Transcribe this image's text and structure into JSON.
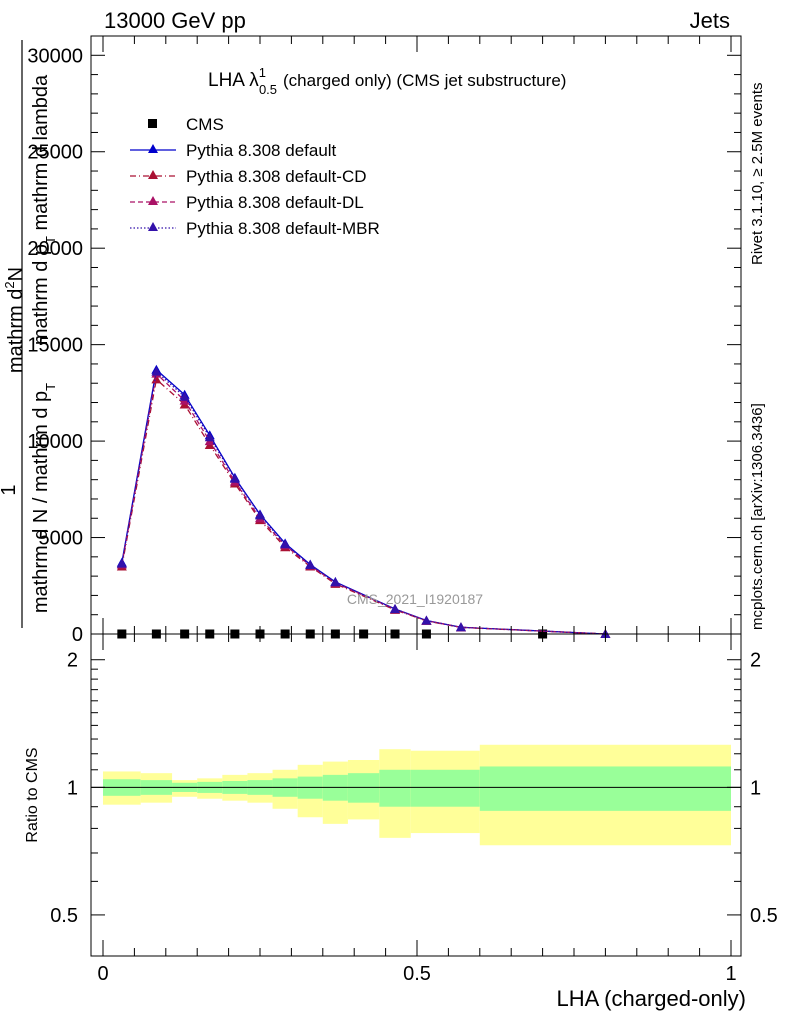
{
  "header": {
    "left_label": "13000 GeV pp",
    "right_label": "Jets"
  },
  "main_plot": {
    "title_main": "LHA λ",
    "title_sup": "1",
    "title_sub": "0.5",
    "title_rest": "(charged only) (CMS jet substructure)",
    "ylabel_num": "1",
    "ylabel_den": "mathrm d N / mathrm d p",
    "ylabel_den_sub": "T",
    "ylabel_frac2_num": "mathrm d",
    "ylabel_frac2_num_sup": "2",
    "ylabel_frac2_num_end": "N",
    "ylabel_frac2_den": "mathrm d p",
    "ylabel_frac2_den_sub": "T",
    "ylabel_frac2_den_end": " mathrm d lambda",
    "watermark": "CMS_2021_I1920187"
  },
  "ratio_plot": {
    "ylabel": "Ratio to CMS"
  },
  "xlabel": "LHA (charged-only)",
  "side": {
    "rivet": "Rivet 3.1.10, ≥ 2.5M events",
    "mcplots": "mcplots.cern.ch [arXiv:1306.3436]"
  },
  "chart_data": {
    "type": "line",
    "xlim": [
      0,
      1
    ],
    "ylim": [
      0,
      31000
    ],
    "ratio_ylim": [
      0.4,
      2.3
    ],
    "x_ticks": [
      "0",
      "0.5",
      "1"
    ],
    "y_ticks": [
      "0",
      "5000",
      "10000",
      "15000",
      "20000",
      "25000",
      "30000"
    ],
    "ratio_y_ticks": [
      "0.5",
      "1",
      "2"
    ],
    "legend_placement": "top-left",
    "colors": {
      "CMS": "#000000",
      "default": "#0000cc",
      "default-CD": "#aa1133",
      "default-DL": "#aa1166",
      "default-MBR": "#3311aa",
      "band_inner": "#99ff99",
      "band_outer": "#ffff99"
    },
    "series": [
      {
        "name": "CMS",
        "marker": "square",
        "x": [
          0.03,
          0.085,
          0.13,
          0.17,
          0.21,
          0.25,
          0.29,
          0.33,
          0.37,
          0.415,
          0.465,
          0.515,
          0.7
        ],
        "y": [
          0,
          0,
          0,
          0,
          0,
          0,
          0,
          0,
          0,
          0,
          0,
          0,
          0
        ]
      },
      {
        "name": "Pythia 8.308 default",
        "style": "solid",
        "x": [
          0.03,
          0.085,
          0.13,
          0.17,
          0.21,
          0.25,
          0.29,
          0.33,
          0.37,
          0.465,
          0.515,
          0.57,
          0.8
        ],
        "y": [
          3700,
          13700,
          12400,
          10300,
          8100,
          6200,
          4700,
          3600,
          2700,
          1300,
          700,
          350,
          0
        ]
      },
      {
        "name": "Pythia 8.308 default-CD",
        "style": "dash-dot",
        "x": [
          0.03,
          0.085,
          0.13,
          0.17,
          0.21,
          0.25,
          0.29,
          0.33,
          0.37,
          0.465,
          0.515,
          0.57,
          0.8
        ],
        "y": [
          3500,
          13200,
          11900,
          9800,
          7800,
          5900,
          4500,
          3500,
          2600,
          1250,
          680,
          340,
          0
        ]
      },
      {
        "name": "Pythia 8.308 default-DL",
        "style": "dashed",
        "x": [
          0.03,
          0.085,
          0.13,
          0.17,
          0.21,
          0.25,
          0.29,
          0.33,
          0.37,
          0.465,
          0.515,
          0.57,
          0.8
        ],
        "y": [
          3600,
          13500,
          12100,
          10000,
          7900,
          6000,
          4600,
          3550,
          2650,
          1280,
          690,
          345,
          0
        ]
      },
      {
        "name": "Pythia 8.308 default-MBR",
        "style": "dotted",
        "x": [
          0.03,
          0.085,
          0.13,
          0.17,
          0.21,
          0.25,
          0.29,
          0.33,
          0.37,
          0.465,
          0.515,
          0.57,
          0.8
        ],
        "y": [
          3650,
          13600,
          12300,
          10200,
          8050,
          6150,
          4650,
          3580,
          2680,
          1290,
          695,
          348,
          0
        ]
      }
    ],
    "ratio_bands": [
      {
        "x0": 0.0,
        "x1": 0.06,
        "inner": [
          0.955,
          1.045
        ],
        "outer": [
          0.91,
          1.09
        ]
      },
      {
        "x0": 0.06,
        "x1": 0.11,
        "inner": [
          0.96,
          1.04
        ],
        "outer": [
          0.92,
          1.08
        ]
      },
      {
        "x0": 0.11,
        "x1": 0.15,
        "inner": [
          0.975,
          1.025
        ],
        "outer": [
          0.95,
          1.04
        ]
      },
      {
        "x0": 0.15,
        "x1": 0.19,
        "inner": [
          0.97,
          1.03
        ],
        "outer": [
          0.94,
          1.05
        ]
      },
      {
        "x0": 0.19,
        "x1": 0.23,
        "inner": [
          0.965,
          1.035
        ],
        "outer": [
          0.93,
          1.07
        ]
      },
      {
        "x0": 0.23,
        "x1": 0.27,
        "inner": [
          0.96,
          1.04
        ],
        "outer": [
          0.92,
          1.08
        ]
      },
      {
        "x0": 0.27,
        "x1": 0.31,
        "inner": [
          0.95,
          1.05
        ],
        "outer": [
          0.89,
          1.1
        ]
      },
      {
        "x0": 0.31,
        "x1": 0.35,
        "inner": [
          0.94,
          1.06
        ],
        "outer": [
          0.85,
          1.13
        ]
      },
      {
        "x0": 0.35,
        "x1": 0.39,
        "inner": [
          0.93,
          1.07
        ],
        "outer": [
          0.82,
          1.15
        ]
      },
      {
        "x0": 0.39,
        "x1": 0.44,
        "inner": [
          0.92,
          1.08
        ],
        "outer": [
          0.84,
          1.16
        ]
      },
      {
        "x0": 0.44,
        "x1": 0.49,
        "inner": [
          0.9,
          1.1
        ],
        "outer": [
          0.76,
          1.23
        ]
      },
      {
        "x0": 0.49,
        "x1": 0.6,
        "inner": [
          0.9,
          1.1
        ],
        "outer": [
          0.78,
          1.22
        ]
      },
      {
        "x0": 0.6,
        "x1": 1.0,
        "inner": [
          0.88,
          1.12
        ],
        "outer": [
          0.73,
          1.26
        ]
      }
    ]
  }
}
